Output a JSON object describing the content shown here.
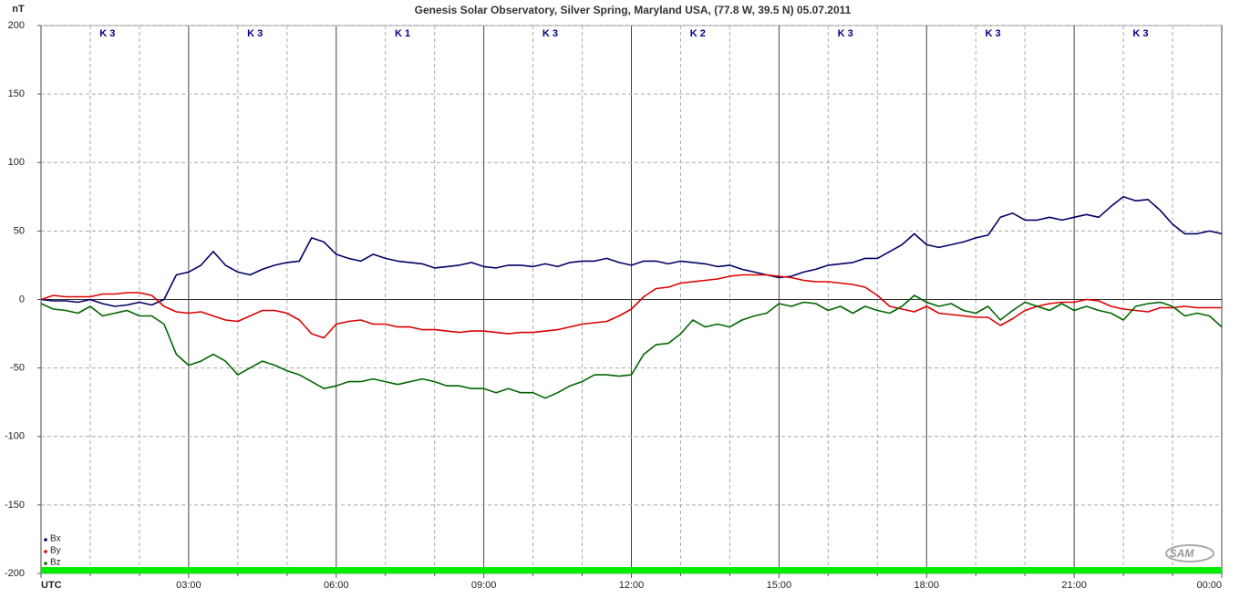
{
  "chart_data": {
    "type": "line",
    "title": "Genesis Solar Observatory, Silver Spring, Maryland USA, (77.8 W, 39.5 N)  05.07.2011",
    "ylabel": "nT",
    "logo": "SAM",
    "k_indices": [
      "K 3",
      "K 3",
      "K 1",
      "K 3",
      "K 2",
      "K 3",
      "K 3",
      "K 3"
    ],
    "xlim": [
      0,
      24
    ],
    "ylim": [
      -200,
      200
    ],
    "xticks": [
      {
        "value": 0,
        "label": "UTC"
      },
      {
        "value": 3,
        "label": "03:00"
      },
      {
        "value": 6,
        "label": "06:00"
      },
      {
        "value": 9,
        "label": "09:00"
      },
      {
        "value": 12,
        "label": "12:00"
      },
      {
        "value": 15,
        "label": "15:00"
      },
      {
        "value": 18,
        "label": "18:00"
      },
      {
        "value": 21,
        "label": "21:00"
      },
      {
        "value": 24,
        "label": "00:00"
      }
    ],
    "xminorticks": [
      1,
      2,
      4,
      5,
      7,
      8,
      10,
      11,
      13,
      14,
      16,
      17,
      19,
      20,
      22,
      23
    ],
    "yticks": [
      200,
      150,
      100,
      50,
      0,
      -50,
      -100,
      -150,
      -200
    ],
    "grid": true,
    "legend": "lower left",
    "x": [
      0,
      0.25,
      0.5,
      0.75,
      1,
      1.25,
      1.5,
      1.75,
      2,
      2.25,
      2.5,
      2.75,
      3,
      3.25,
      3.5,
      3.75,
      4,
      4.25,
      4.5,
      4.75,
      5,
      5.25,
      5.5,
      5.75,
      6,
      6.25,
      6.5,
      6.75,
      7,
      7.25,
      7.5,
      7.75,
      8,
      8.25,
      8.5,
      8.75,
      9,
      9.25,
      9.5,
      9.75,
      10,
      10.25,
      10.5,
      10.75,
      11,
      11.25,
      11.5,
      11.75,
      12,
      12.25,
      12.5,
      12.75,
      13,
      13.25,
      13.5,
      13.75,
      14,
      14.25,
      14.5,
      14.75,
      15,
      15.25,
      15.5,
      15.75,
      16,
      16.25,
      16.5,
      16.75,
      17,
      17.25,
      17.5,
      17.75,
      18,
      18.25,
      18.5,
      18.75,
      19,
      19.25,
      19.5,
      19.75,
      20,
      20.25,
      20.5,
      20.75,
      21,
      21.25,
      21.5,
      21.75,
      22,
      22.25,
      22.5,
      22.75,
      23,
      23.25,
      23.5,
      23.75,
      24
    ],
    "series": [
      {
        "name": "Bx",
        "color": "#000066",
        "values": [
          0,
          -1,
          -1,
          -2,
          0,
          -3,
          -5,
          -4,
          -2,
          -4,
          0,
          18,
          20,
          25,
          35,
          25,
          20,
          18,
          22,
          25,
          27,
          28,
          45,
          42,
          33,
          30,
          28,
          33,
          30,
          28,
          27,
          26,
          23,
          24,
          25,
          27,
          24,
          23,
          25,
          25,
          24,
          26,
          24,
          27,
          28,
          28,
          30,
          27,
          25,
          28,
          28,
          26,
          28,
          27,
          26,
          24,
          25,
          22,
          20,
          18,
          16,
          17,
          20,
          22,
          25,
          26,
          27,
          30,
          30,
          35,
          40,
          48,
          40,
          38,
          40,
          42,
          45,
          47,
          60,
          63,
          58,
          58,
          60,
          58,
          60,
          62,
          60,
          68,
          75,
          72,
          73,
          65,
          55,
          48,
          48,
          50,
          48
        ]
      },
      {
        "name": "By",
        "color": "#dd0000",
        "values": [
          0,
          3,
          2,
          2,
          2,
          4,
          4,
          5,
          5,
          3,
          -5,
          -9,
          -10,
          -9,
          -12,
          -15,
          -16,
          -12,
          -8,
          -8,
          -10,
          -15,
          -25,
          -28,
          -18,
          -16,
          -15,
          -18,
          -18,
          -20,
          -20,
          -22,
          -22,
          -23,
          -24,
          -23,
          -23,
          -24,
          -25,
          -24,
          -24,
          -23,
          -22,
          -20,
          -18,
          -17,
          -16,
          -12,
          -7,
          2,
          8,
          9,
          12,
          13,
          14,
          15,
          17,
          18,
          18,
          18,
          17,
          16,
          14,
          13,
          13,
          12,
          11,
          9,
          3,
          -5,
          -7,
          -9,
          -5,
          -10,
          -11,
          -12,
          -13,
          -13,
          -19,
          -14,
          -8,
          -5,
          -3,
          -2,
          -2,
          0,
          -1,
          -5,
          -7,
          -8,
          -9,
          -6,
          -6,
          -5,
          -6,
          -6,
          -6
        ]
      },
      {
        "name": "Bz",
        "color": "#006600",
        "values": [
          -3,
          -7,
          -8,
          -10,
          -5,
          -12,
          -10,
          -8,
          -12,
          -12,
          -18,
          -40,
          -48,
          -45,
          -40,
          -45,
          -55,
          -50,
          -45,
          -48,
          -52,
          -55,
          -60,
          -65,
          -63,
          -60,
          -60,
          -58,
          -60,
          -62,
          -60,
          -58,
          -60,
          -63,
          -63,
          -65,
          -65,
          -68,
          -65,
          -68,
          -68,
          -72,
          -68,
          -63,
          -60,
          -55,
          -55,
          -56,
          -55,
          -40,
          -33,
          -32,
          -25,
          -15,
          -20,
          -18,
          -20,
          -15,
          -12,
          -10,
          -3,
          -5,
          -2,
          -3,
          -8,
          -5,
          -10,
          -5,
          -8,
          -10,
          -5,
          3,
          -2,
          -5,
          -3,
          -8,
          -10,
          -5,
          -15,
          -8,
          -2,
          -5,
          -8,
          -3,
          -8,
          -5,
          -8,
          -10,
          -15,
          -5,
          -3,
          -2,
          -5,
          -12,
          -10,
          -12,
          -20
        ]
      }
    ]
  }
}
